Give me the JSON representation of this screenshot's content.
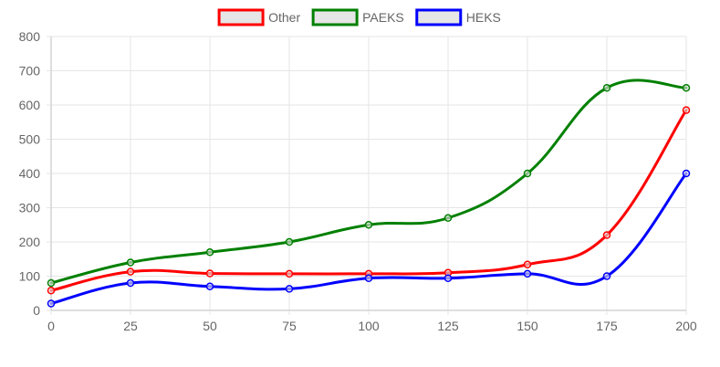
{
  "chart_data": {
    "type": "line",
    "x": [
      0,
      25,
      50,
      75,
      100,
      125,
      150,
      175,
      200
    ],
    "series": [
      {
        "name": "Other",
        "color": "#ff0000",
        "values": [
          58,
          113,
          108,
          107,
          107,
          110,
          134,
          220,
          585
        ]
      },
      {
        "name": "PAEKS",
        "color": "#008000",
        "values": [
          80,
          140,
          170,
          200,
          250,
          270,
          400,
          650,
          650
        ]
      },
      {
        "name": "HEKS",
        "color": "#0000ff",
        "values": [
          20,
          80,
          70,
          63,
          94,
          94,
          107,
          100,
          400
        ]
      }
    ],
    "xlim": [
      0,
      200
    ],
    "ylim": [
      0,
      800
    ],
    "xticks": [
      "0",
      "25",
      "50",
      "75",
      "100",
      "125",
      "150",
      "175",
      "200"
    ],
    "yticks": [
      "0",
      "100",
      "200",
      "300",
      "400",
      "500",
      "600",
      "700",
      "800"
    ],
    "legend_position": "top",
    "legend_fill": "#e6e6e6",
    "grid": true
  }
}
